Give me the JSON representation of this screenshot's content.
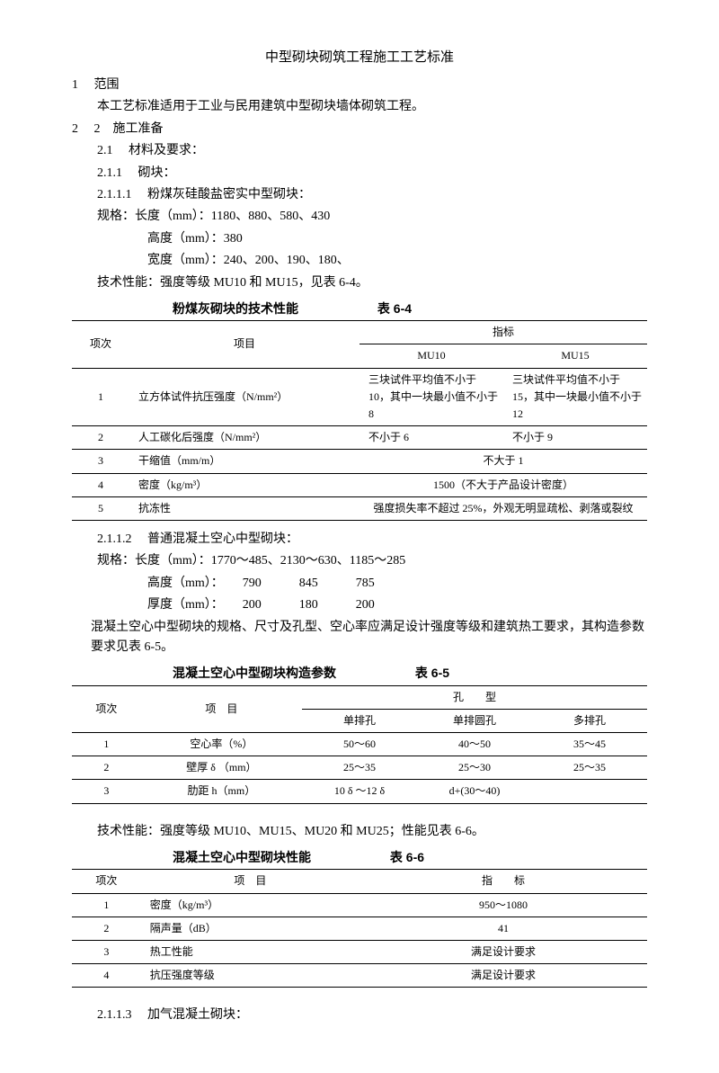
{
  "title": "中型砌块砌筑工程施工工艺标准",
  "s1": {
    "num": "1",
    "label": "范围",
    "body": "本工艺标准适用于工业与民用建筑中型砌块墙体砌筑工程。"
  },
  "s2": {
    "num": "2",
    "label": "2　施工准备",
    "s21": {
      "num": "2.1",
      "label": "材料及要求："
    },
    "s211": {
      "num": "2.1.1",
      "label": "砌块："
    },
    "s2111": {
      "num": "2.1.1.1",
      "label": "粉煤灰硅酸盐密实中型砌块："
    },
    "spec1": "规格：长度（mm）：1180、880、580、430",
    "spec1h": "高度（mm）：380",
    "spec1w": "宽度（mm）：240、200、190、180、",
    "tech1": "技术性能：强度等级 MU10 和 MU15，见表 6-4。"
  },
  "t64": {
    "title": "粉煤灰砌块的技术性能",
    "tnum": "表 6-4",
    "h_col": "项次",
    "h_item": "项目",
    "h_idx": "指标",
    "h_mu10": "MU10",
    "h_mu15": "MU15",
    "r1": {
      "n": "1",
      "i": "立方体试件抗压强度（N/mm²）",
      "a": "三块试件平均值不小于 10，其中一块最小值不小于 8",
      "b": "三块试件平均值不小于 15，其中一块最小值不小于 12"
    },
    "r2": {
      "n": "2",
      "i": "人工碳化后强度（N/mm²）",
      "a": "不小于 6",
      "b": "不小于 9"
    },
    "r3": {
      "n": "3",
      "i": "干缩值（mm/m）",
      "ab": "不大于 1"
    },
    "r4": {
      "n": "4",
      "i": "密度（kg/m³）",
      "ab": "1500（不大于产品设计密度）"
    },
    "r5": {
      "n": "5",
      "i": "抗冻性",
      "ab": "强度损失率不超过 25%，外观无明显疏松、剥落或裂纹"
    }
  },
  "s2112": {
    "num": "2.1.1.2",
    "label": "普通混凝土空心中型砌块：",
    "spec": "规格：长度（mm）：1770～485、2130～630、1185～285",
    "h": "高度（mm）：　　790　　　845　　　785",
    "t": "厚度（mm）：　　200　　　180　　　200",
    "note": "混凝土空心中型砌块的规格、尺寸及孔型、空心率应满足设计强度等级和建筑热工要求，其构造参数要求见表 6-5。"
  },
  "t65": {
    "title": "混凝土空心中型砌块构造参数",
    "tnum": "表 6-5",
    "h_col": "项次",
    "h_item": "项　目",
    "h_hole": "孔　　型",
    "h1": "单排孔",
    "h2": "单排圆孔",
    "h3": "多排孔",
    "r1": {
      "n": "1",
      "i": "空心率（%）",
      "a": "50～60",
      "b": "40～50",
      "c": "35～45"
    },
    "r2": {
      "n": "2",
      "i": "壁厚 δ （mm）",
      "a": "25～35",
      "b": "25～30",
      "c": "25～35"
    },
    "r3": {
      "n": "3",
      "i": "肋距 h（mm）",
      "a": "10 δ ～12 δ",
      "b": "d+(30～40)",
      "c": ""
    }
  },
  "tech2": "技术性能：强度等级 MU10、MU15、MU20 和 MU25；性能见表 6-6。",
  "t66": {
    "title": "混凝土空心中型砌块性能",
    "tnum": "表 6-6",
    "h_col": "项次",
    "h_item": "项　目",
    "h_idx": "指　　标",
    "r1": {
      "n": "1",
      "i": "密度（kg/m³）",
      "v": "950～1080"
    },
    "r2": {
      "n": "2",
      "i": "隔声量（dB）",
      "v": "41"
    },
    "r3": {
      "n": "3",
      "i": "热工性能",
      "v": "满足设计要求"
    },
    "r4": {
      "n": "4",
      "i": "抗压强度等级",
      "v": "满足设计要求"
    }
  },
  "s2113": {
    "num": "2.1.1.3",
    "label": "加气混凝土砌块："
  }
}
